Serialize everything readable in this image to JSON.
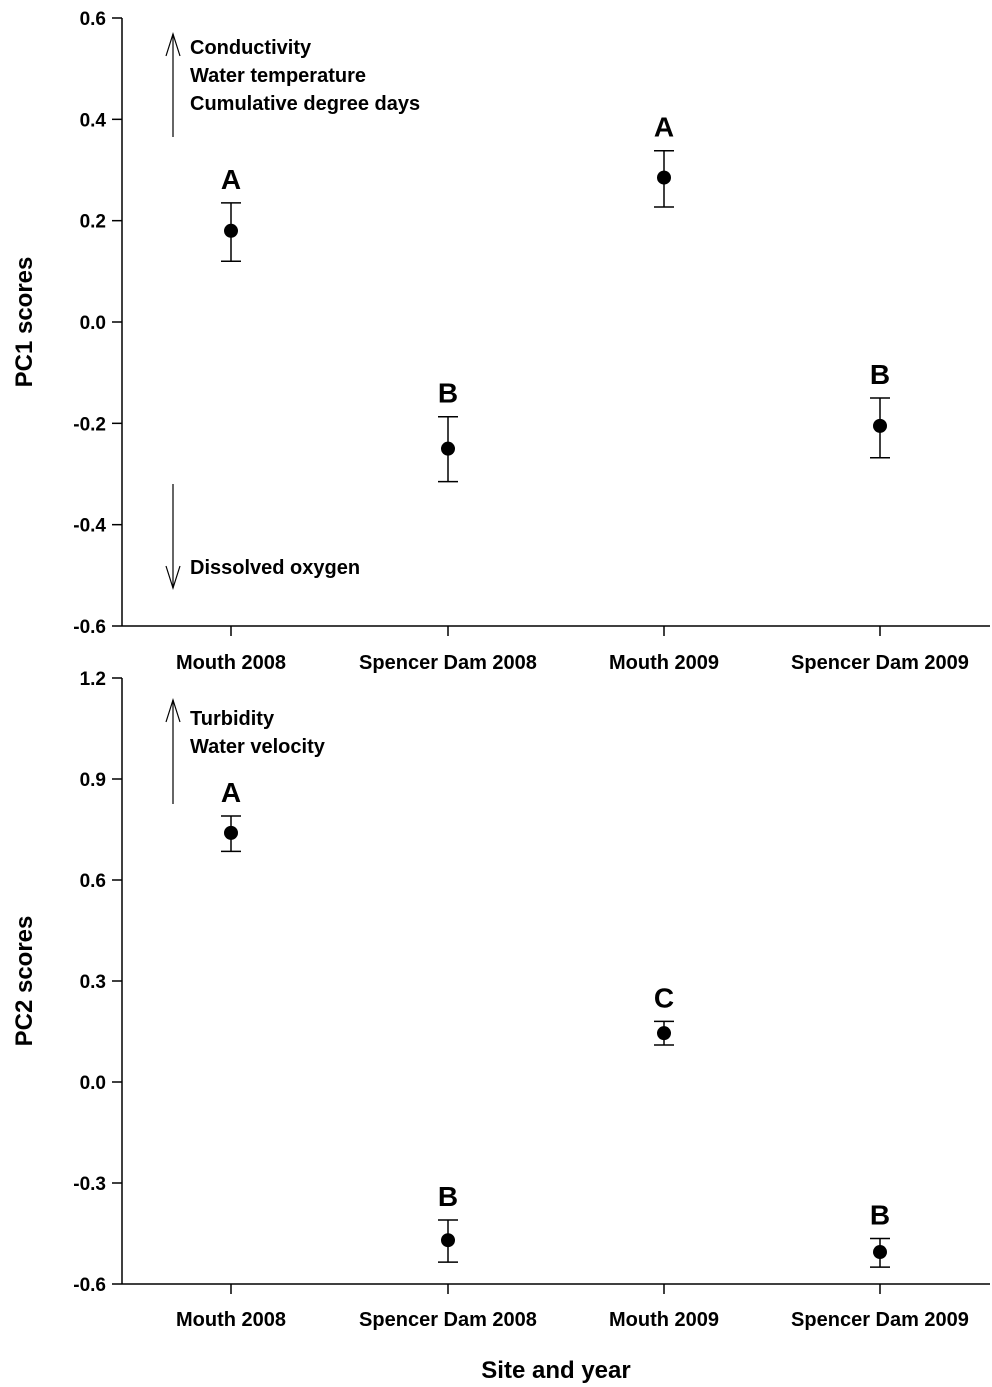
{
  "chart_data": [
    {
      "type": "scatter",
      "categories": [
        "Mouth 2008",
        "Spencer Dam 2008",
        "Mouth 2009",
        "Spencer Dam 2009"
      ],
      "values": [
        0.18,
        -0.25,
        0.285,
        -0.205
      ],
      "error_upper": [
        0.235,
        -0.187,
        0.338,
        -0.15
      ],
      "error_lower": [
        0.12,
        -0.315,
        0.227,
        -0.268
      ],
      "significance_letters": [
        "A",
        "B",
        "A",
        "B"
      ],
      "ylabel": "PC1 scores",
      "xlabel": "",
      "ylim": [
        -0.6,
        0.6
      ],
      "yticks": [
        "0.6",
        "0.4",
        "0.2",
        "0.0",
        "-0.2",
        "-0.4",
        "-0.6"
      ],
      "annotations": {
        "up": [
          "Conductivity",
          "Water temperature",
          "Cumulative degree days"
        ],
        "down": [
          "Dissolved oxygen"
        ]
      }
    },
    {
      "type": "scatter",
      "categories": [
        "Mouth 2008",
        "Spencer Dam 2008",
        "Mouth 2009",
        "Spencer Dam 2009"
      ],
      "values": [
        0.74,
        -0.47,
        0.145,
        -0.505
      ],
      "error_upper": [
        0.79,
        -0.41,
        0.18,
        -0.465
      ],
      "error_lower": [
        0.685,
        -0.535,
        0.11,
        -0.55
      ],
      "significance_letters": [
        "A",
        "B",
        "C",
        "B"
      ],
      "ylabel": "PC2 scores",
      "xlabel": "Site and year",
      "ylim": [
        -0.6,
        1.2
      ],
      "yticks": [
        "1.2",
        "0.9",
        "0.6",
        "0.3",
        "0.0",
        "-0.3",
        "-0.6"
      ],
      "annotations": {
        "up": [
          "Turbidity",
          "Water velocity"
        ]
      }
    }
  ]
}
